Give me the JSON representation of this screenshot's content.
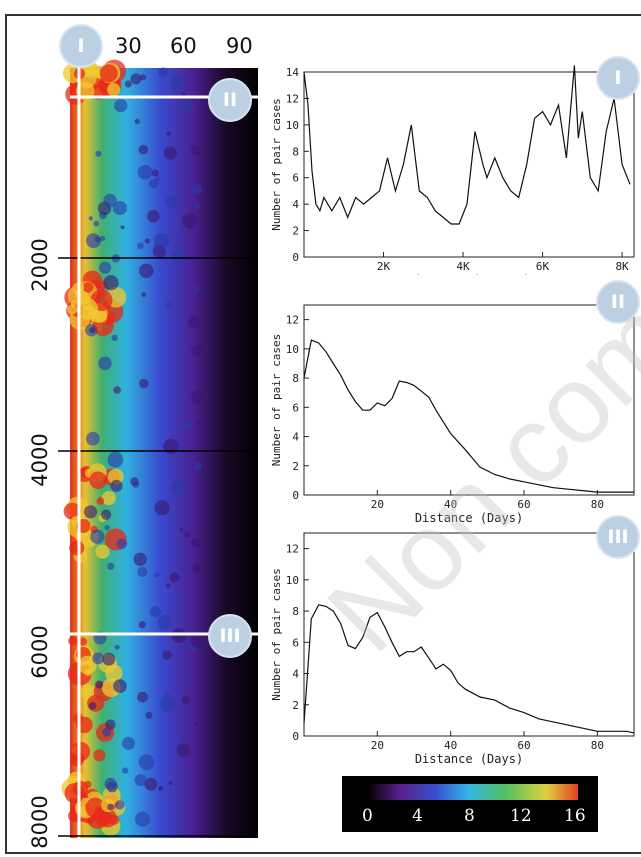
{
  "heatmap": {
    "x_tick_labels": [
      "30",
      "60",
      "90"
    ],
    "y_tick_labels": [
      "2000",
      "4000",
      "6000",
      "8000"
    ],
    "markers": [
      "I",
      "II",
      "III"
    ],
    "colorbar": {
      "tick_labels": [
        "0",
        "4",
        "8",
        "12",
        "16"
      ],
      "colors": [
        "#000000",
        "#5a1f8a",
        "#3a4ed0",
        "#35b5e8",
        "#4fc060",
        "#e0d040",
        "#e04020"
      ]
    }
  },
  "panels": [
    {
      "marker": "I",
      "ylabel": "Number of pair cases",
      "xlabel": "Distance (Meters)"
    },
    {
      "marker": "II",
      "ylabel": "Number of pair cases",
      "xlabel": "Distance (Days)"
    },
    {
      "marker": "III",
      "ylabel": "Number of pair cases",
      "xlabel": "Distance (Days)"
    }
  ],
  "watermark": "Non comm",
  "chart_data": [
    {
      "type": "heatmap",
      "x_ticks": [
        30,
        60,
        90
      ],
      "y_ticks": [
        2000,
        4000,
        6000,
        8000
      ],
      "xlim": [
        0,
        90
      ],
      "ylim": [
        0,
        8000
      ],
      "colorbar_range": [
        0,
        16
      ],
      "annotations": [
        "I",
        "II",
        "III"
      ]
    },
    {
      "type": "line",
      "xlabel": "Distance (Meters)",
      "ylabel": "Number of pair cases",
      "xlim": [
        0,
        8300
      ],
      "ylim": [
        0,
        14
      ],
      "x_ticks": [
        2000,
        4000,
        6000,
        8000
      ],
      "x_tick_labels": [
        "2K",
        "4K",
        "6K",
        "8K"
      ],
      "y_ticks": [
        0,
        2,
        4,
        6,
        8,
        10,
        12,
        14
      ],
      "x": [
        0,
        100,
        200,
        300,
        400,
        500,
        700,
        900,
        1100,
        1300,
        1500,
        1700,
        1900,
        2100,
        2300,
        2500,
        2700,
        2900,
        3100,
        3300,
        3500,
        3700,
        3900,
        4100,
        4300,
        4500,
        4600,
        4800,
        5000,
        5200,
        5400,
        5600,
        5800,
        6000,
        6200,
        6400,
        6600,
        6800,
        6900,
        7000,
        7200,
        7400,
        7600,
        7800,
        8000,
        8200
      ],
      "y": [
        14,
        11.5,
        6.5,
        4,
        3.5,
        4.5,
        3.5,
        4.5,
        3,
        4.5,
        4,
        4.5,
        5,
        7.5,
        5,
        7,
        10,
        5,
        4.5,
        3.5,
        3,
        2.5,
        2.5,
        4,
        9.5,
        7,
        6,
        7.5,
        6,
        5,
        4.5,
        7,
        10.5,
        11,
        10,
        11.5,
        7.5,
        14.5,
        9,
        11,
        6,
        5,
        9.5,
        12,
        7,
        5.5
      ]
    },
    {
      "type": "line",
      "xlabel": "Distance (Days)",
      "ylabel": "Number of pair cases",
      "xlim": [
        0,
        90
      ],
      "ylim": [
        0,
        13
      ],
      "x_ticks": [
        20,
        40,
        60,
        80
      ],
      "y_ticks": [
        0,
        2,
        4,
        6,
        8,
        10,
        12
      ],
      "x": [
        0,
        2,
        4,
        6,
        8,
        10,
        12,
        14,
        16,
        18,
        20,
        22,
        24,
        26,
        28,
        30,
        32,
        34,
        36,
        38,
        40,
        44,
        48,
        52,
        56,
        60,
        64,
        68,
        72,
        76,
        80,
        84,
        88,
        90
      ],
      "y": [
        8,
        10.6,
        10.4,
        9.8,
        9,
        8.2,
        7.2,
        6.4,
        5.8,
        5.8,
        6.3,
        6.1,
        6.6,
        7.8,
        7.7,
        7.5,
        7.1,
        6.7,
        5.8,
        5,
        4.2,
        3.1,
        1.9,
        1.4,
        1.1,
        0.9,
        0.7,
        0.5,
        0.4,
        0.3,
        0.2,
        0.2,
        0.2,
        0.2
      ]
    },
    {
      "type": "line",
      "xlabel": "Distance (Days)",
      "ylabel": "Number of pair cases",
      "xlim": [
        0,
        90
      ],
      "ylim": [
        0,
        13
      ],
      "x_ticks": [
        20,
        40,
        60,
        80
      ],
      "y_ticks": [
        0,
        2,
        4,
        6,
        8,
        10,
        12
      ],
      "x": [
        0,
        2,
        4,
        6,
        8,
        10,
        12,
        14,
        16,
        18,
        20,
        22,
        24,
        26,
        28,
        30,
        32,
        34,
        36,
        38,
        40,
        42,
        44,
        48,
        52,
        56,
        60,
        64,
        68,
        72,
        76,
        80,
        84,
        88,
        90
      ],
      "y": [
        0.8,
        7.5,
        8.4,
        8.3,
        8,
        7.2,
        5.8,
        5.6,
        6.3,
        7.6,
        7.9,
        7,
        6,
        5.1,
        5.4,
        5.4,
        5.7,
        5,
        4.3,
        4.6,
        4.2,
        3.4,
        3,
        2.5,
        2.3,
        1.8,
        1.5,
        1.1,
        0.9,
        0.7,
        0.5,
        0.3,
        0.3,
        0.3,
        0.2
      ]
    }
  ]
}
